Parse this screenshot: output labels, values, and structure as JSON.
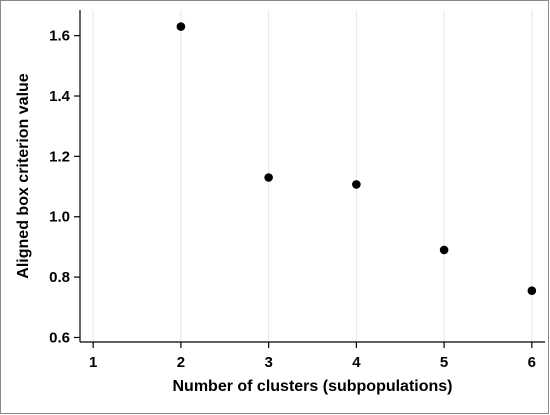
{
  "chart_data": {
    "type": "scatter",
    "title": "",
    "xlabel": "Number of clusters (subpopulations)",
    "ylabel": "Aligned box criterion value",
    "x": [
      2,
      3,
      4,
      5,
      6
    ],
    "y": [
      1.63,
      1.13,
      1.107,
      0.89,
      0.755
    ],
    "xlim": [
      0.85,
      6.15
    ],
    "ylim": [
      0.585,
      1.685
    ],
    "xticks": [
      1,
      2,
      3,
      4,
      5,
      6
    ],
    "xtick_labels": [
      "1",
      "2",
      "3",
      "4",
      "5",
      "6"
    ],
    "yticks": [
      0.6,
      0.8,
      1.0,
      1.2,
      1.4,
      1.6
    ],
    "ytick_labels": [
      "0.6",
      "0.8",
      "1.0",
      "1.2",
      "1.4",
      "1.6"
    ],
    "grid": "vertical",
    "legend": "none",
    "colors": {
      "marker": "#000000",
      "grid": "#e6e6e6",
      "axis": "#000000"
    }
  }
}
